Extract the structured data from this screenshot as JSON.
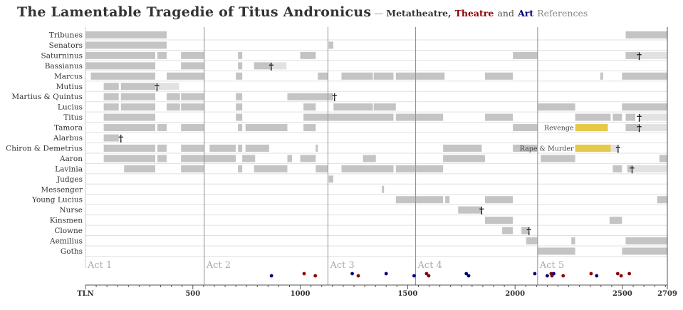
{
  "header": {
    "title": "The Lamentable Tragedie of Titus Andronicus",
    "dash": "—",
    "sub_metatheatre": "Metatheatre,",
    "sub_theatre": "Theatre",
    "sub_and": "and",
    "sub_art": "Art",
    "sub_references": "References"
  },
  "chart_data": {
    "type": "timeline",
    "x_axis_label": "TLN",
    "x_ticks": [
      500,
      1000,
      1500,
      2000,
      2500
    ],
    "x_end_label": "2709",
    "x_range": [
      0,
      2709
    ],
    "acts": [
      {
        "label": "Act 1",
        "start": 0
      },
      {
        "label": "Act 2",
        "start": 553
      },
      {
        "label": "Act 3",
        "start": 1129
      },
      {
        "label": "Act 4",
        "start": 1537
      },
      {
        "label": "Act 5",
        "start": 2105
      }
    ],
    "rows": [
      {
        "name": "Tribunes",
        "segments": [
          [
            0,
            378
          ],
          [
            2515,
            2709
          ]
        ]
      },
      {
        "name": "Senators",
        "segments": [
          [
            0,
            378
          ],
          [
            1132,
            1154
          ]
        ]
      },
      {
        "name": "Saturninus",
        "segments": [
          [
            0,
            325
          ],
          [
            335,
            378
          ],
          [
            445,
            553
          ],
          [
            710,
            730
          ],
          [
            1000,
            1072
          ],
          [
            1990,
            2105
          ],
          [
            2515,
            2580
          ]
        ],
        "light": [
          [
            2580,
            2709
          ]
        ],
        "death": 2578
      },
      {
        "name": "Bassianus",
        "segments": [
          [
            0,
            325
          ],
          [
            445,
            553
          ],
          [
            710,
            730
          ],
          [
            785,
            865
          ]
        ],
        "light": [
          [
            865,
            936
          ]
        ],
        "death": 865
      },
      {
        "name": "Marcus",
        "segments": [
          [
            25,
            325
          ],
          [
            378,
            553
          ],
          [
            700,
            730
          ],
          [
            1082,
            1129
          ],
          [
            1192,
            1338
          ],
          [
            1342,
            1434
          ],
          [
            1445,
            1672
          ],
          [
            1860,
            1990
          ],
          [
            2397,
            2410
          ],
          [
            2498,
            2709
          ]
        ]
      },
      {
        "name": "Mutius",
        "segments": [
          [
            85,
            155
          ],
          [
            165,
            325
          ]
        ],
        "light": [
          [
            325,
            436
          ]
        ],
        "death": 333
      },
      {
        "name": "Martius & Quintus",
        "segments": [
          [
            85,
            155
          ],
          [
            165,
            325
          ],
          [
            378,
            440
          ],
          [
            445,
            553
          ],
          [
            700,
            730
          ],
          [
            940,
            1154
          ]
        ],
        "death": 1160
      },
      {
        "name": "Lucius",
        "segments": [
          [
            85,
            155
          ],
          [
            165,
            325
          ],
          [
            378,
            440
          ],
          [
            445,
            553
          ],
          [
            700,
            730
          ],
          [
            1015,
            1072
          ],
          [
            1155,
            1338
          ],
          [
            1342,
            1445
          ],
          [
            2105,
            2280
          ],
          [
            2498,
            2709
          ]
        ]
      },
      {
        "name": "Titus",
        "segments": [
          [
            85,
            325
          ],
          [
            700,
            730
          ],
          [
            1015,
            1434
          ],
          [
            1445,
            1665
          ],
          [
            1860,
            1990
          ],
          [
            2280,
            2445
          ],
          [
            2455,
            2498
          ],
          [
            2515,
            2560
          ]
        ],
        "light": [
          [
            2580,
            2709
          ]
        ],
        "death": 2578
      },
      {
        "name": "Tamora",
        "segments": [
          [
            85,
            325
          ],
          [
            335,
            378
          ],
          [
            445,
            553
          ],
          [
            710,
            730
          ],
          [
            745,
            940
          ],
          [
            1015,
            1072
          ],
          [
            1990,
            2105
          ],
          [
            2515,
            2580
          ]
        ],
        "light": [
          [
            2580,
            2709
          ]
        ],
        "death": 2578,
        "highlight": {
          "start": 2280,
          "end": 2432,
          "label": "Revenge"
        }
      },
      {
        "name": "Alarbus",
        "segments": [
          [
            85,
            155
          ]
        ],
        "death": 165
      },
      {
        "name": "Chiron & Demetrius",
        "segments": [
          [
            85,
            325
          ],
          [
            335,
            378
          ],
          [
            445,
            553
          ],
          [
            578,
            700
          ],
          [
            710,
            730
          ],
          [
            745,
            855
          ],
          [
            1072,
            1082
          ],
          [
            1665,
            1845
          ],
          [
            1990,
            2105
          ]
        ],
        "death": 2480,
        "highlight": {
          "start": 2280,
          "end": 2446,
          "label": "Rape & Murder"
        },
        "highlight_tail": [
          2446,
          2480
        ]
      },
      {
        "name": "Aaron",
        "segments": [
          [
            85,
            325
          ],
          [
            335,
            378
          ],
          [
            445,
            700
          ],
          [
            730,
            790
          ],
          [
            940,
            962
          ],
          [
            1000,
            1072
          ],
          [
            1292,
            1352
          ],
          [
            1665,
            1860
          ],
          [
            2120,
            2280
          ],
          [
            2672,
            2709
          ]
        ]
      },
      {
        "name": "Lavinia",
        "segments": [
          [
            180,
            325
          ],
          [
            445,
            553
          ],
          [
            710,
            730
          ],
          [
            785,
            940
          ],
          [
            1072,
            1129
          ],
          [
            1192,
            1434
          ],
          [
            1445,
            1665
          ],
          [
            2455,
            2498
          ],
          [
            2522,
            2545
          ]
        ],
        "light": [
          [
            2545,
            2709
          ]
        ],
        "death": 2545
      },
      {
        "name": "Judges",
        "segments": [
          [
            1132,
            1154
          ]
        ]
      },
      {
        "name": "Messenger",
        "segments": [
          [
            1380,
            1390
          ]
        ]
      },
      {
        "name": "Young Lucius",
        "segments": [
          [
            1445,
            1665
          ],
          [
            1675,
            1695
          ],
          [
            1860,
            1990
          ],
          [
            2662,
            2709
          ]
        ]
      },
      {
        "name": "Nurse",
        "segments": [
          [
            1735,
            1845
          ]
        ],
        "death": 1845
      },
      {
        "name": "Kinsmen",
        "segments": [
          [
            1860,
            1990
          ],
          [
            2440,
            2498
          ]
        ]
      },
      {
        "name": "Clowne",
        "segments": [
          [
            1940,
            1990
          ],
          [
            2030,
            2062
          ]
        ],
        "death": 2065
      },
      {
        "name": "Aemilius",
        "segments": [
          [
            2052,
            2105
          ],
          [
            2262,
            2280
          ],
          [
            2515,
            2709
          ]
        ]
      },
      {
        "name": "Goths",
        "segments": [
          [
            2105,
            2280
          ],
          [
            2498,
            2709
          ]
        ]
      }
    ],
    "references": [
      {
        "tln": 866,
        "kind": "art"
      },
      {
        "tln": 1018,
        "kind": "theatre"
      },
      {
        "tln": 1070,
        "kind": "theatre"
      },
      {
        "tln": 1242,
        "kind": "art"
      },
      {
        "tln": 1270,
        "kind": "theatre"
      },
      {
        "tln": 1400,
        "kind": "art"
      },
      {
        "tln": 1530,
        "kind": "art"
      },
      {
        "tln": 1588,
        "kind": "theatre"
      },
      {
        "tln": 1598,
        "kind": "theatre"
      },
      {
        "tln": 1773,
        "kind": "art"
      },
      {
        "tln": 1784,
        "kind": "art"
      },
      {
        "tln": 2092,
        "kind": "art"
      },
      {
        "tln": 2150,
        "kind": "art"
      },
      {
        "tln": 2168,
        "kind": "theatre"
      },
      {
        "tln": 2172,
        "kind": "theatre"
      },
      {
        "tln": 2180,
        "kind": "art"
      },
      {
        "tln": 2224,
        "kind": "theatre"
      },
      {
        "tln": 2354,
        "kind": "theatre"
      },
      {
        "tln": 2380,
        "kind": "art"
      },
      {
        "tln": 2478,
        "kind": "theatre"
      },
      {
        "tln": 2494,
        "kind": "theatre"
      },
      {
        "tln": 2532,
        "kind": "theatre"
      }
    ],
    "colors": {
      "bar": "#c4c4c4",
      "bar_light": "#e2e2e2",
      "highlight": "#e6c84a",
      "theatre": "#8b0000",
      "art": "#000080",
      "grid": "#e0e0e0",
      "act_line": "#909090",
      "text": "#333333"
    }
  }
}
